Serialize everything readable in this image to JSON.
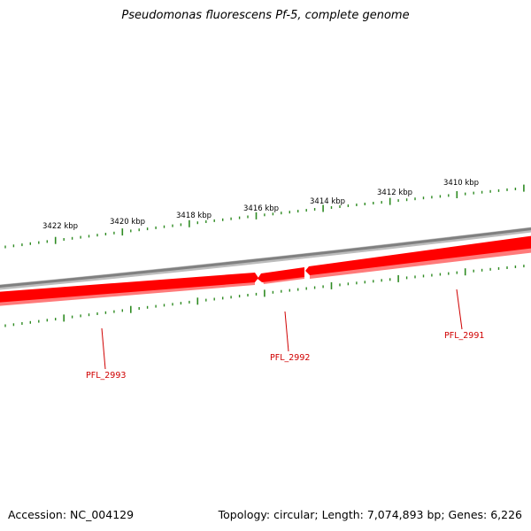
{
  "title": "Pseudomonas fluorescens Pf-5, complete genome",
  "footer": {
    "accession": "Accession: NC_004129",
    "summary": "Topology: circular; Length: 7,074,893 bp; Genes: 6,226"
  },
  "colors": {
    "backbone": "#808080",
    "gene_fill": "#ff0000",
    "gene_shadow": "#ff7070",
    "tick": "#2e8b22",
    "gene_label": "#d00000"
  },
  "kbp_labels": [
    "3422 kbp",
    "3420 kbp",
    "3418 kbp",
    "3416 kbp",
    "3414 kbp",
    "3412 kbp",
    "3410 kbp"
  ],
  "genes": [
    {
      "name": "PFL_2993",
      "strand": "minus"
    },
    {
      "name": "PFL_2992",
      "strand": "minus"
    },
    {
      "name": "PFL_2991",
      "strand": "minus"
    }
  ]
}
